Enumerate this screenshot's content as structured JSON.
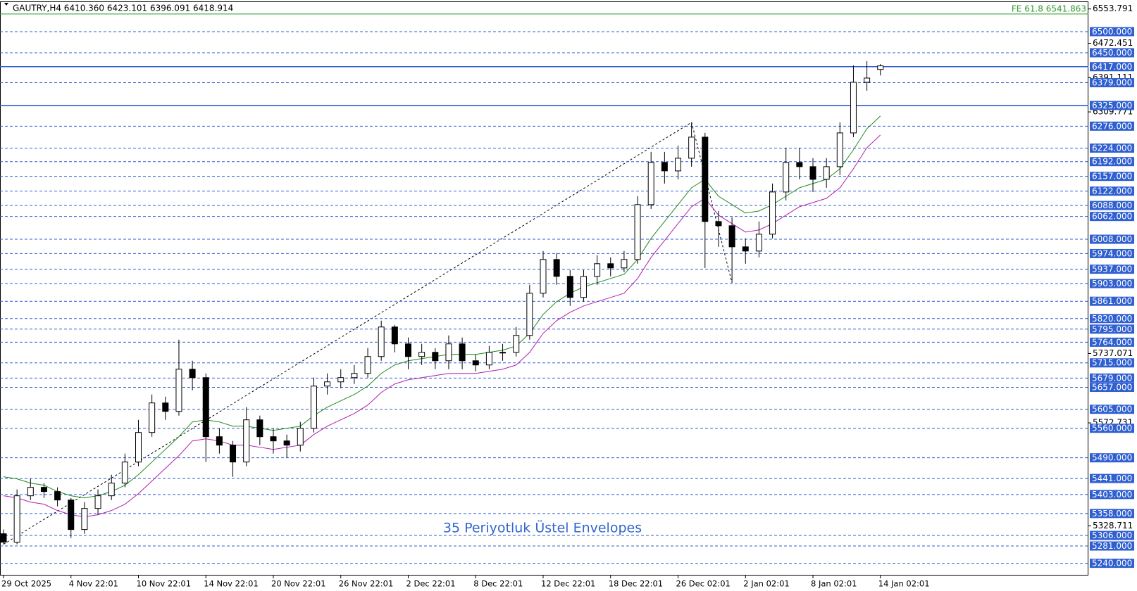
{
  "chart_data": {
    "type": "candlestick",
    "title": "GAUTRY,H4  6410.360 6423.101 6396.091 6418.914",
    "annotation": "35 Periyotluk Üstel Envelopes",
    "categories": [
      "29 Oct 2025",
      null,
      null,
      null,
      null,
      "4 Nov 22:01",
      null,
      null,
      null,
      null,
      "10 Nov 22:01",
      null,
      null,
      null,
      null,
      "14 Nov 22:01",
      null,
      null,
      null,
      null,
      "20 Nov 22:01",
      null,
      null,
      null,
      null,
      "26 Nov 22:01",
      null,
      null,
      null,
      null,
      "2 Dec 22:01",
      null,
      null,
      null,
      null,
      "8 Dec 22:01",
      null,
      null,
      null,
      null,
      "12 Dec 22:01",
      null,
      null,
      null,
      null,
      "18 Dec 22:01",
      null,
      null,
      null,
      null,
      "26 Dec 02:01",
      null,
      null,
      null,
      null,
      "2 Jan 02:01",
      null,
      null,
      null,
      null,
      "8 Jan 02:01",
      null,
      null,
      null,
      null,
      "14 Jan 02:01"
    ],
    "open": [
      5310,
      5290,
      5400,
      5420,
      5410,
      5390,
      5320,
      5370,
      5400,
      5430,
      5480,
      5550,
      5620,
      5600,
      5700,
      5680,
      5540,
      5520,
      5480,
      5580,
      5540,
      5530,
      5520,
      5560,
      5660,
      5670,
      5680,
      5690,
      5730,
      5800,
      5760,
      5730,
      5740,
      5720,
      5760,
      5720,
      5710,
      5740,
      5740,
      5780,
      5880,
      5960,
      5920,
      5870,
      5920,
      5950,
      5940,
      5960,
      6090,
      6190,
      6170,
      6200,
      6250,
      6050,
      6040,
      5990,
      5980,
      6020,
      6120,
      6190,
      6180,
      6150,
      6180,
      6260,
      6380,
      6410.36
    ],
    "high": [
      5320,
      5415,
      5440,
      5430,
      5420,
      5395,
      5385,
      5415,
      5450,
      5500,
      5580,
      5640,
      5635,
      5770,
      5720,
      5690,
      5560,
      5530,
      5610,
      5590,
      5560,
      5545,
      5575,
      5680,
      5690,
      5700,
      5710,
      5750,
      5815,
      5805,
      5775,
      5760,
      5750,
      5780,
      5775,
      5735,
      5755,
      5760,
      5800,
      5900,
      5980,
      5975,
      5935,
      5935,
      5970,
      5965,
      5980,
      6110,
      6215,
      6215,
      6230,
      6285,
      6260,
      6075,
      6060,
      6010,
      6050,
      6140,
      6225,
      6225,
      6200,
      6200,
      6285,
      6420,
      6430,
      6423.101
    ],
    "low": [
      5285,
      5285,
      5390,
      5395,
      5375,
      5300,
      5310,
      5355,
      5390,
      5420,
      5470,
      5540,
      5580,
      5590,
      5650,
      5480,
      5500,
      5445,
      5470,
      5520,
      5500,
      5490,
      5505,
      5550,
      5640,
      5655,
      5665,
      5680,
      5720,
      5740,
      5700,
      5710,
      5700,
      5700,
      5700,
      5695,
      5700,
      5720,
      5730,
      5770,
      5870,
      5900,
      5850,
      5860,
      5900,
      5920,
      5930,
      5950,
      6080,
      6140,
      6150,
      6180,
      5940,
      5990,
      5905,
      5950,
      5965,
      6010,
      6100,
      6150,
      6120,
      6130,
      6160,
      6250,
      6360,
      6396.091
    ],
    "close": [
      5290,
      5400,
      5420,
      5410,
      5390,
      5320,
      5370,
      5400,
      5430,
      5480,
      5550,
      5620,
      5600,
      5700,
      5680,
      5540,
      5520,
      5480,
      5580,
      5540,
      5530,
      5520,
      5560,
      5660,
      5670,
      5680,
      5690,
      5730,
      5800,
      5760,
      5730,
      5740,
      5720,
      5760,
      5720,
      5710,
      5740,
      5740,
      5780,
      5880,
      5960,
      5920,
      5870,
      5920,
      5950,
      5940,
      5960,
      6090,
      6190,
      6170,
      6200,
      6250,
      6050,
      6040,
      5990,
      5980,
      6020,
      6120,
      6190,
      6180,
      6150,
      6180,
      6260,
      6380,
      6390,
      6418.914
    ],
    "envelopes": [
      {
        "color": "#1f8a1f",
        "values": [
          5445,
          5440,
          5430,
          5425,
          5410,
          5400,
          5395,
          5400,
          5410,
          5425,
          5450,
          5480,
          5510,
          5540,
          5575,
          5580,
          5575,
          5565,
          5565,
          5560,
          5555,
          5560,
          5565,
          5590,
          5610,
          5625,
          5640,
          5660,
          5690,
          5710,
          5720,
          5725,
          5730,
          5735,
          5735,
          5735,
          5740,
          5745,
          5755,
          5785,
          5830,
          5860,
          5880,
          5895,
          5905,
          5915,
          5925,
          5960,
          6010,
          6050,
          6090,
          6130,
          6150,
          6110,
          6090,
          6070,
          6075,
          6090,
          6110,
          6130,
          6140,
          6150,
          6175,
          6220,
          6270,
          6300
        ]
      },
      {
        "color": "#b01eb0",
        "values": [
          5400,
          5395,
          5385,
          5380,
          5365,
          5355,
          5350,
          5355,
          5365,
          5380,
          5405,
          5435,
          5465,
          5495,
          5530,
          5535,
          5530,
          5520,
          5520,
          5515,
          5510,
          5515,
          5520,
          5545,
          5565,
          5580,
          5595,
          5615,
          5645,
          5665,
          5675,
          5680,
          5685,
          5690,
          5690,
          5690,
          5695,
          5700,
          5710,
          5740,
          5785,
          5815,
          5835,
          5850,
          5860,
          5870,
          5880,
          5915,
          5965,
          6005,
          6045,
          6085,
          6105,
          6065,
          6045,
          6025,
          6030,
          6045,
          6065,
          6085,
          6095,
          6105,
          6130,
          6175,
          6225,
          6255
        ]
      }
    ],
    "ylim": [
      5211,
      6570
    ],
    "yticks": [
      6553.791,
      6472.451,
      6391.111,
      6309.771,
      5737.071,
      5572.731,
      5328.711
    ],
    "levels": [
      {
        "value": 6500,
        "label": "6500.000",
        "style": "dashed"
      },
      {
        "value": 6450,
        "label": "6450.000",
        "style": "dashed"
      },
      {
        "value": 6417,
        "label": "6417.000",
        "style": "solid"
      },
      {
        "value": 6379,
        "label": "6379.000",
        "style": "dashed"
      },
      {
        "value": 6325,
        "label": "6325.000",
        "style": "solid"
      },
      {
        "value": 6276,
        "label": "6276.000",
        "style": "dashed"
      },
      {
        "value": 6224,
        "label": "6224.000",
        "style": "dashed"
      },
      {
        "value": 6192,
        "label": "6192.000",
        "style": "dashed"
      },
      {
        "value": 6157,
        "label": "6157.000",
        "style": "dashed"
      },
      {
        "value": 6122,
        "label": "6122.000",
        "style": "dashed"
      },
      {
        "value": 6088,
        "label": "6088.000",
        "style": "dashed"
      },
      {
        "value": 6062,
        "label": "6062.000",
        "style": "dashed"
      },
      {
        "value": 6008,
        "label": "6008.000",
        "style": "dashed"
      },
      {
        "value": 5974,
        "label": "5974.000",
        "style": "dashed"
      },
      {
        "value": 5937,
        "label": "5937.000",
        "style": "dashed"
      },
      {
        "value": 5903,
        "label": "5903.000",
        "style": "dashed"
      },
      {
        "value": 5861,
        "label": "5861.000",
        "style": "dashed"
      },
      {
        "value": 5820,
        "label": "5820.000",
        "style": "dashed"
      },
      {
        "value": 5795,
        "label": "5795.000",
        "style": "dashed"
      },
      {
        "value": 5764,
        "label": "5764.000",
        "style": "dashed"
      },
      {
        "value": 5715,
        "label": "5715.000",
        "style": "dashed"
      },
      {
        "value": 5679,
        "label": "5679.000",
        "style": "dashed"
      },
      {
        "value": 5657,
        "label": "5657.000",
        "style": "dashed"
      },
      {
        "value": 5605,
        "label": "5605.000",
        "style": "dashed"
      },
      {
        "value": 5560,
        "label": "5560.000",
        "style": "dashed"
      },
      {
        "value": 5490,
        "label": "5490.000",
        "style": "dashed"
      },
      {
        "value": 5441,
        "label": "5441.000",
        "style": "dashed"
      },
      {
        "value": 5403,
        "label": "5403.000",
        "style": "dashed"
      },
      {
        "value": 5358,
        "label": "5358.000",
        "style": "dashed"
      },
      {
        "value": 5306,
        "label": "5306.000",
        "style": "dashed"
      },
      {
        "value": 5281,
        "label": "5281.000",
        "style": "dashed"
      },
      {
        "value": 5240,
        "label": "5240.000",
        "style": "dashed"
      }
    ],
    "level_color": "#2f5fd0",
    "fe_line": {
      "value": 6541.863,
      "label": "FE 61.8 6541.863",
      "color": "#2e9a2e"
    }
  }
}
